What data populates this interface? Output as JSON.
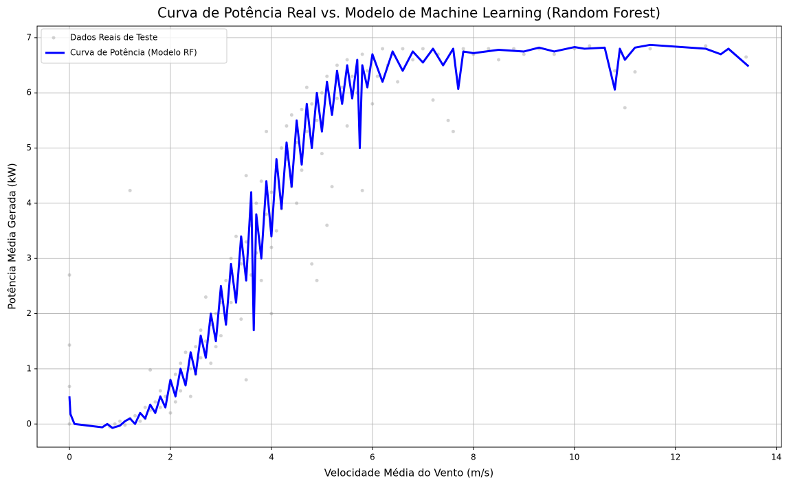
{
  "chart_data": {
    "type": "scatter",
    "title": "Curva de Potência Real vs. Modelo de Machine Learning (Random Forest)",
    "x_label": "Velocidade Média do Vento (m/s)",
    "y_label": "Potência Média Gerada (kW)",
    "xlim": [
      -0.64,
      14.1
    ],
    "ylim": [
      -0.42,
      7.21
    ],
    "xticks": [
      0,
      2,
      4,
      6,
      8,
      10,
      12,
      14
    ],
    "yticks": [
      0,
      1,
      2,
      3,
      4,
      5,
      6,
      7
    ],
    "grid": true,
    "legend": "upper-left",
    "series": [
      {
        "name": "Dados Reais de Teste",
        "type": "scatter",
        "color": "#808080",
        "x": [
          0,
          0,
          0,
          0,
          1.2,
          0.8,
          0.9,
          1.0,
          1.1,
          1.2,
          1.3,
          1.4,
          1.5,
          1.5,
          1.6,
          1.6,
          1.7,
          1.8,
          1.8,
          1.9,
          2.0,
          2.0,
          2.1,
          2.1,
          2.2,
          2.2,
          2.3,
          2.3,
          2.4,
          2.4,
          2.5,
          2.5,
          2.6,
          2.6,
          2.7,
          2.7,
          2.8,
          2.8,
          2.9,
          2.9,
          3.0,
          3.0,
          3.1,
          3.1,
          3.2,
          3.2,
          3.3,
          3.3,
          3.4,
          3.4,
          3.5,
          3.5,
          3.5,
          3.6,
          3.6,
          3.7,
          3.7,
          3.8,
          3.8,
          3.9,
          3.9,
          4.0,
          4.0,
          4.0,
          4.1,
          4.1,
          4.2,
          4.2,
          4.3,
          4.3,
          4.4,
          4.4,
          4.5,
          4.5,
          4.6,
          4.6,
          4.7,
          4.7,
          4.8,
          4.8,
          4.9,
          4.9,
          5.0,
          5.0,
          5.1,
          5.1,
          5.2,
          5.2,
          5.3,
          5.3,
          5.4,
          5.5,
          5.5,
          5.6,
          5.7,
          5.8,
          5.8,
          5.9,
          6.0,
          6.0,
          6.1,
          6.2,
          6.3,
          6.4,
          6.5,
          6.6,
          6.8,
          7.0,
          7.2,
          7.3,
          7.5,
          7.6,
          7.8,
          8.0,
          8.3,
          8.5,
          8.8,
          9.0,
          9.3,
          9.6,
          10.0,
          10.3,
          10.8,
          11.0,
          11.2,
          11.5,
          12.6,
          13.4
        ],
        "values": [
          2.7,
          1.43,
          0.68,
          0,
          4.23,
          -0.05,
          0,
          0.05,
          -0.02,
          0.1,
          0.15,
          0.05,
          0.3,
          0.1,
          0.25,
          0.98,
          0.4,
          0.3,
          0.6,
          0.5,
          0.7,
          0.2,
          0.9,
          0.4,
          1.1,
          0.6,
          0.8,
          1.3,
          1.0,
          0.5,
          1.4,
          0.9,
          1.2,
          1.7,
          1.5,
          2.3,
          1.8,
          1.1,
          2.0,
          1.4,
          2.2,
          1.6,
          2.6,
          1.9,
          3.0,
          2.2,
          2.4,
          3.4,
          2.9,
          1.9,
          3.3,
          4.5,
          0.8,
          3.6,
          2.7,
          4.0,
          3.1,
          4.4,
          2.6,
          3.8,
          5.3,
          4.2,
          3.2,
          2.0,
          4.6,
          3.5,
          5.0,
          3.9,
          4.8,
          5.4,
          4.3,
          5.6,
          5.1,
          4.0,
          5.7,
          4.6,
          5.3,
          6.1,
          2.9,
          5.8,
          5.5,
          2.6,
          6.0,
          4.9,
          3.6,
          6.3,
          5.7,
          4.3,
          6.5,
          5.9,
          6.1,
          6.6,
          5.4,
          6.3,
          6.0,
          6.7,
          4.23,
          6.4,
          6.6,
          5.8,
          6.3,
          6.8,
          6.5,
          6.7,
          6.2,
          6.8,
          6.6,
          6.8,
          5.87,
          6.7,
          5.5,
          5.3,
          6.8,
          6.7,
          6.8,
          6.6,
          6.8,
          6.7,
          6.8,
          6.7,
          6.8,
          6.85,
          6.4,
          5.73,
          6.38,
          6.8,
          6.85,
          6.65
        ]
      },
      {
        "name": "Curva de Potência (Modelo RF)",
        "type": "line",
        "color": "#0000ff",
        "x": [
          0,
          0.02,
          0.1,
          0.65,
          0.75,
          0.85,
          1.0,
          1.1,
          1.2,
          1.3,
          1.4,
          1.5,
          1.6,
          1.7,
          1.8,
          1.9,
          2.0,
          2.1,
          2.2,
          2.3,
          2.4,
          2.5,
          2.6,
          2.7,
          2.8,
          2.9,
          3.0,
          3.1,
          3.2,
          3.3,
          3.4,
          3.5,
          3.6,
          3.65,
          3.7,
          3.8,
          3.9,
          4.0,
          4.1,
          4.2,
          4.3,
          4.4,
          4.5,
          4.6,
          4.7,
          4.8,
          4.9,
          5.0,
          5.1,
          5.2,
          5.3,
          5.4,
          5.5,
          5.6,
          5.7,
          5.75,
          5.8,
          5.9,
          6.0,
          6.2,
          6.4,
          6.6,
          6.8,
          7.0,
          7.2,
          7.4,
          7.6,
          7.7,
          7.8,
          8.0,
          8.5,
          9.0,
          9.3,
          9.6,
          10.0,
          10.2,
          10.6,
          10.8,
          10.9,
          11.0,
          11.2,
          11.5,
          12.6,
          12.9,
          13.05,
          13.45
        ],
        "values": [
          0.5,
          0.18,
          0,
          -0.06,
          0.0,
          -0.07,
          -0.03,
          0.05,
          0.1,
          0.0,
          0.2,
          0.1,
          0.35,
          0.2,
          0.5,
          0.3,
          0.8,
          0.5,
          1.0,
          0.7,
          1.3,
          0.9,
          1.6,
          1.2,
          2.0,
          1.5,
          2.5,
          1.8,
          2.9,
          2.2,
          3.4,
          2.6,
          4.2,
          1.7,
          3.8,
          3.0,
          4.4,
          3.4,
          4.8,
          3.9,
          5.1,
          4.3,
          5.5,
          4.7,
          5.8,
          5.0,
          6.0,
          5.3,
          6.2,
          5.6,
          6.4,
          5.8,
          6.5,
          5.9,
          6.6,
          5.0,
          6.5,
          6.1,
          6.7,
          6.2,
          6.75,
          6.4,
          6.75,
          6.55,
          6.8,
          6.5,
          6.8,
          6.07,
          6.75,
          6.72,
          6.78,
          6.75,
          6.82,
          6.75,
          6.83,
          6.8,
          6.82,
          6.06,
          6.8,
          6.6,
          6.82,
          6.87,
          6.8,
          6.7,
          6.8,
          6.48
        ]
      }
    ]
  }
}
